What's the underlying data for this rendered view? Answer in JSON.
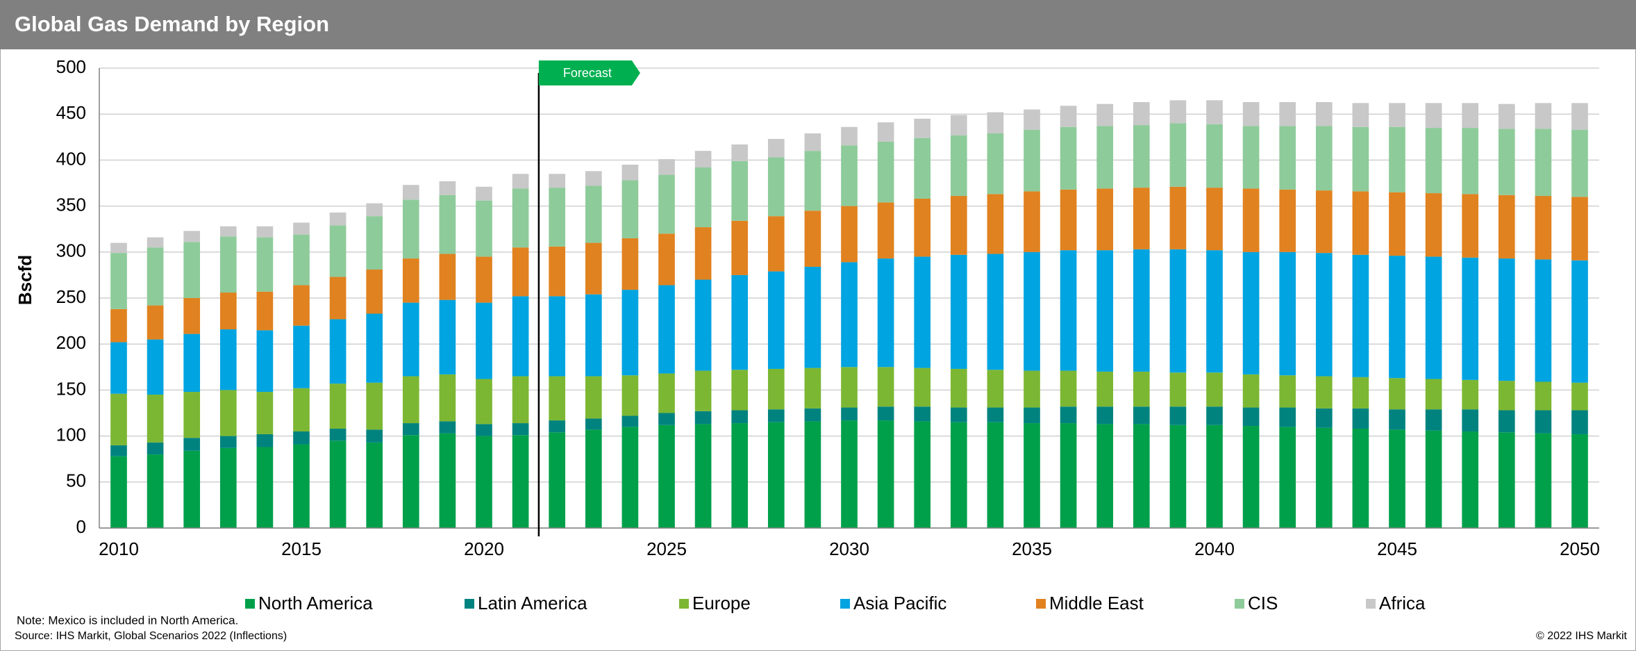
{
  "chart_data": {
    "type": "stacked_bar",
    "title": "Global Gas Demand by Region",
    "y_label": "Bscfd",
    "annotation": "Forecast",
    "note": "Note: Mexico is included in North America.",
    "source": "Source: IHS Markit, Global Scenarios 2022 (Inflections)",
    "copyright": "© 2022 IHS Markit",
    "categories": [
      2010,
      null,
      null,
      null,
      null,
      2015,
      null,
      null,
      null,
      null,
      2020,
      null,
      null,
      null,
      null,
      2025,
      null,
      null,
      null,
      null,
      2030,
      null,
      null,
      null,
      null,
      2035,
      null,
      null,
      null,
      null,
      2040,
      null,
      null,
      null,
      null,
      2045,
      null,
      null,
      null,
      null,
      2050
    ],
    "ylim": [
      0,
      500
    ],
    "yticks": [
      0,
      50,
      100,
      150,
      200,
      250,
      300,
      350,
      400,
      450,
      500
    ],
    "grid": true,
    "legend": "bottom",
    "series": [
      {
        "name": "North America",
        "color": "#00a04b",
        "values": [
          78,
          80,
          84,
          87,
          88,
          91,
          95,
          93,
          101,
          103,
          100,
          101,
          104,
          107,
          110,
          112,
          113,
          114,
          115,
          116,
          117,
          117,
          116,
          115,
          115,
          114,
          114,
          113,
          113,
          112,
          112,
          111,
          110,
          109,
          108,
          107,
          106,
          105,
          104,
          103,
          102
        ]
      },
      {
        "name": "Latin America",
        "color": "#00837f",
        "values": [
          12,
          13,
          14,
          13,
          14,
          14,
          13,
          14,
          13,
          13,
          13,
          13,
          13,
          12,
          12,
          13,
          14,
          14,
          14,
          14,
          14,
          15,
          16,
          16,
          16,
          17,
          18,
          19,
          19,
          20,
          20,
          20,
          21,
          21,
          22,
          22,
          23,
          24,
          24,
          25,
          26
        ]
      },
      {
        "name": "Europe",
        "color": "#7cb733",
        "values": [
          56,
          52,
          50,
          50,
          46,
          47,
          49,
          51,
          51,
          51,
          49,
          51,
          48,
          46,
          44,
          43,
          44,
          44,
          44,
          44,
          44,
          43,
          42,
          42,
          41,
          40,
          39,
          38,
          38,
          37,
          37,
          36,
          35,
          35,
          34,
          34,
          33,
          32,
          32,
          31,
          30
        ]
      },
      {
        "name": "Asia Pacific",
        "color": "#00a4e0",
        "values": [
          56,
          60,
          63,
          66,
          67,
          68,
          70,
          75,
          80,
          81,
          83,
          87,
          87,
          89,
          93,
          96,
          99,
          103,
          106,
          110,
          114,
          118,
          121,
          124,
          126,
          129,
          131,
          132,
          133,
          134,
          133,
          133,
          134,
          134,
          133,
          133,
          133,
          133,
          133,
          133,
          133
        ]
      },
      {
        "name": "Middle East",
        "color": "#e0821f",
        "values": [
          36,
          37,
          39,
          40,
          42,
          44,
          46,
          48,
          48,
          50,
          50,
          53,
          54,
          56,
          56,
          56,
          57,
          59,
          60,
          61,
          61,
          61,
          63,
          64,
          65,
          66,
          66,
          67,
          67,
          68,
          68,
          69,
          68,
          68,
          69,
          69,
          69,
          69,
          69,
          69,
          69
        ]
      },
      {
        "name": "CIS",
        "color": "#8ecb9a",
        "values": [
          61,
          63,
          61,
          61,
          59,
          55,
          56,
          58,
          64,
          64,
          61,
          64,
          64,
          62,
          63,
          64,
          65,
          65,
          64,
          65,
          66,
          66,
          66,
          66,
          66,
          67,
          68,
          68,
          68,
          69,
          69,
          68,
          69,
          70,
          70,
          71,
          71,
          72,
          72,
          73,
          73
        ]
      },
      {
        "name": "Africa",
        "color": "#c8c8c8",
        "values": [
          11,
          11,
          12,
          11,
          12,
          13,
          14,
          14,
          16,
          15,
          15,
          16,
          15,
          16,
          17,
          17,
          18,
          18,
          20,
          19,
          20,
          21,
          21,
          22,
          23,
          22,
          23,
          24,
          25,
          25,
          26,
          26,
          26,
          26,
          26,
          26,
          27,
          27,
          27,
          28,
          29
        ]
      }
    ]
  }
}
